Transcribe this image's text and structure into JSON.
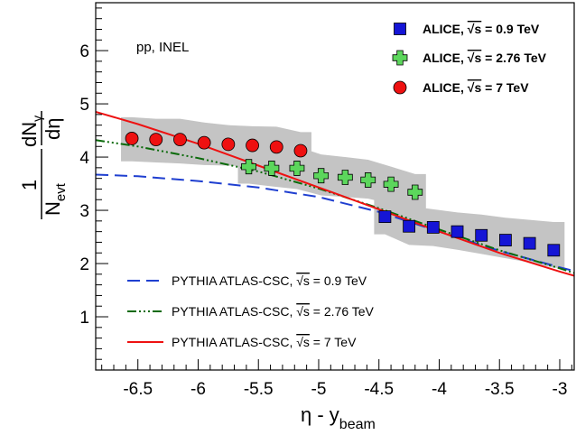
{
  "chart_data": {
    "type": "scatter",
    "annotation": "pp, INEL",
    "xlim": [
      -6.85,
      -2.88
    ],
    "ylim": [
      0,
      6.9
    ],
    "x_ticks": [
      "-6.5",
      "-6",
      "-5.5",
      "-5",
      "-4.5",
      "-4",
      "-3.5",
      "-3"
    ],
    "x_tick_values": [
      -6.5,
      -6,
      -5.5,
      -5,
      -4.5,
      -4,
      -3.5,
      -3
    ],
    "y_ticks": [
      "1",
      "2",
      "3",
      "4",
      "5",
      "6"
    ],
    "y_tick_values": [
      1,
      2,
      3,
      4,
      5,
      6
    ],
    "xlabel": {
      "main": "η - y",
      "sub": "beam"
    },
    "ylabel": {
      "numerator": "1",
      "denominator": "N",
      "denominator_sub": "evt",
      "deriv_top": "dN",
      "deriv_top_sub": "γ",
      "deriv_bottom": "dη"
    },
    "series": [
      {
        "name": "ALICE, √s = 0.9 TeV",
        "label_text": "ALICE, ",
        "label_root": "√s",
        "label_rest": " = 0.9 TeV",
        "marker": "square",
        "color": "#1515d6",
        "x": [
          -4.45,
          -4.25,
          -4.05,
          -3.85,
          -3.65,
          -3.45,
          -3.25,
          -3.05
        ],
        "y": [
          2.88,
          2.7,
          2.68,
          2.6,
          2.53,
          2.44,
          2.38,
          2.25
        ],
        "band_upper": [
          3.25,
          3.08,
          3.02,
          2.96,
          2.92,
          2.86,
          2.82,
          2.78
        ],
        "band_lower": [
          2.55,
          2.35,
          2.33,
          2.26,
          2.18,
          2.1,
          2.02,
          1.92
        ]
      },
      {
        "name": "ALICE, √s = 2.76 TeV",
        "label_text": "ALICE, ",
        "label_root": "√s",
        "label_rest": " = 2.76 TeV",
        "marker": "cross",
        "color": "#5cd65c",
        "x": [
          -5.58,
          -5.39,
          -5.18,
          -4.98,
          -4.78,
          -4.59,
          -4.4,
          -4.2
        ],
        "y": [
          3.82,
          3.79,
          3.79,
          3.65,
          3.62,
          3.57,
          3.49,
          3.34
        ],
        "band_upper": [
          4.35,
          4.35,
          4.2,
          4.05,
          4.0,
          3.95,
          3.82,
          3.68
        ],
        "band_lower": [
          3.5,
          3.45,
          3.4,
          3.28,
          3.25,
          3.22,
          3.12,
          3.02
        ]
      },
      {
        "name": "ALICE, √s = 7 TeV",
        "label_text": "ALICE, ",
        "label_root": "√s",
        "label_rest": " = 7 TeV",
        "marker": "circle",
        "color": "#ee1111",
        "x": [
          -6.55,
          -6.35,
          -6.15,
          -5.95,
          -5.75,
          -5.55,
          -5.35,
          -5.15
        ],
        "y": [
          4.35,
          4.33,
          4.33,
          4.27,
          4.24,
          4.22,
          4.19,
          4.12
        ],
        "band_upper": [
          4.75,
          4.72,
          4.72,
          4.65,
          4.6,
          4.58,
          4.57,
          4.47
        ],
        "band_lower": [
          3.92,
          3.9,
          3.88,
          3.85,
          3.84,
          3.82,
          3.82,
          3.75
        ]
      }
    ],
    "models": [
      {
        "name": "PYTHIA ATLAS-CSC, √s = 0.9 TeV",
        "label_text": "PYTHIA ATLAS-CSC, ",
        "label_root": "√s",
        "label_rest": " = 0.9 TeV",
        "color": "#1f3fd0",
        "dash": "14,7",
        "x": [
          -6.85,
          -6.5,
          -6.0,
          -5.5,
          -5.0,
          -4.5,
          -4.0,
          -3.5,
          -3.0,
          -2.88
        ],
        "y": [
          3.67,
          3.64,
          3.55,
          3.43,
          3.25,
          2.97,
          2.6,
          2.24,
          1.93,
          1.86
        ]
      },
      {
        "name": "PYTHIA ATLAS-CSC, √s = 2.76 TeV",
        "label_text": "PYTHIA ATLAS-CSC, ",
        "label_root": "√s",
        "label_rest": " = 2.76 TeV",
        "color": "#0a6a0a",
        "dash": "10,3,2,3,2,3,2,3",
        "x": [
          -6.85,
          -6.5,
          -6.0,
          -5.5,
          -5.0,
          -4.5,
          -4.0,
          -3.5,
          -3.0,
          -2.88
        ],
        "y": [
          4.32,
          4.2,
          3.98,
          3.73,
          3.41,
          3.04,
          2.64,
          2.25,
          1.91,
          1.82
        ]
      },
      {
        "name": "PYTHIA ATLAS-CSC, √s = 7 TeV",
        "label_text": "PYTHIA ATLAS-CSC, ",
        "label_root": "√s",
        "label_rest": " = 7 TeV",
        "color": "#ee1111",
        "dash": "",
        "x": [
          -6.85,
          -6.5,
          -6.0,
          -5.5,
          -5.0,
          -4.5,
          -4.0,
          -3.5,
          -3.0,
          -2.88
        ],
        "y": [
          4.85,
          4.62,
          4.25,
          3.84,
          3.43,
          3.02,
          2.6,
          2.2,
          1.85,
          1.77
        ]
      }
    ],
    "legend_placement": "top-right",
    "model_legend_placement": "bottom-left",
    "grid": false
  }
}
